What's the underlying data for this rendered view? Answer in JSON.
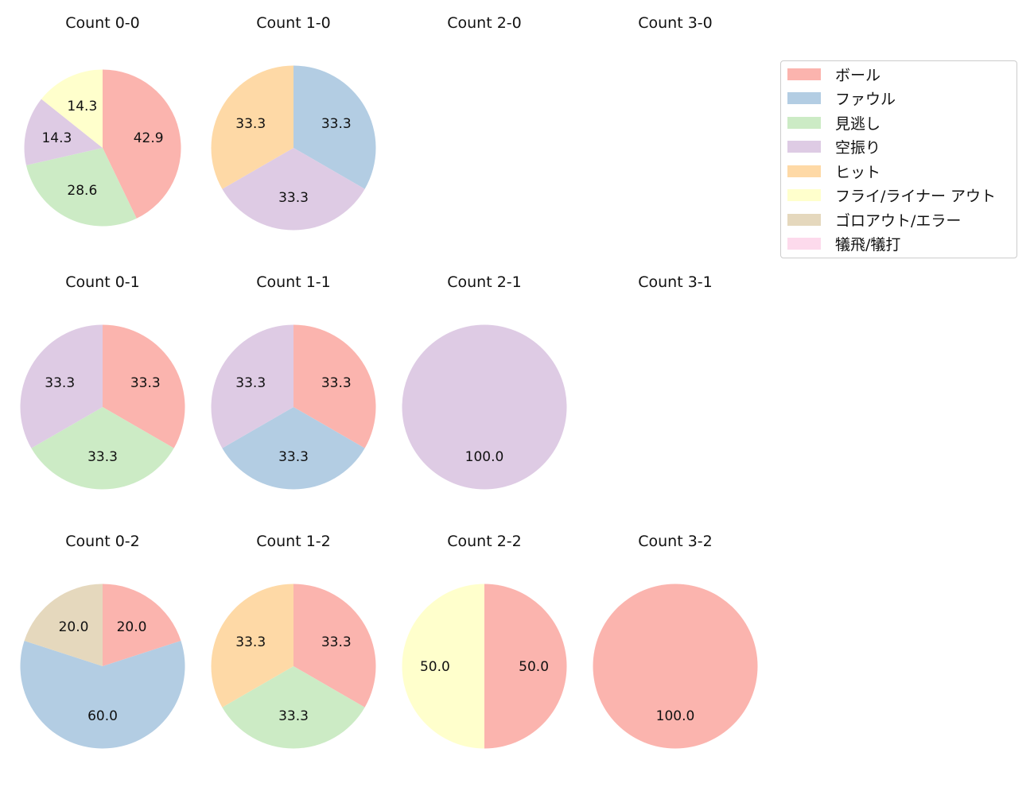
{
  "chart_data": {
    "type": "pie",
    "start_angle": 90,
    "direction": "clockwise",
    "categories": [
      "ボール",
      "ファウル",
      "見逃し",
      "空振り",
      "ヒット",
      "フライ/ライナー アウト",
      "ゴロアウト/エラー",
      "犠飛/犠打"
    ],
    "colors": [
      "#fbb4ae",
      "#b3cde3",
      "#ccebc5",
      "#decbe4",
      "#fed9a6",
      "#ffffcc",
      "#e5d8bd",
      "#fddaec"
    ],
    "legend_position": "top-right",
    "subplots": [
      {
        "title": "Count 0-0",
        "values": [
          42.9,
          0,
          28.6,
          14.3,
          0,
          14.3,
          0,
          0
        ]
      },
      {
        "title": "Count 1-0",
        "values": [
          0,
          33.3,
          0,
          33.3,
          33.3,
          0,
          0,
          0
        ]
      },
      {
        "title": "Count 2-0",
        "values": []
      },
      {
        "title": "Count 3-0",
        "values": []
      },
      {
        "title": "Count 0-1",
        "values": [
          33.3,
          0,
          33.3,
          33.3,
          0,
          0,
          0,
          0
        ]
      },
      {
        "title": "Count 1-1",
        "values": [
          33.3,
          33.3,
          0,
          33.3,
          0,
          0,
          0,
          0
        ]
      },
      {
        "title": "Count 2-1",
        "values": [
          0,
          0,
          0,
          100.0,
          0,
          0,
          0,
          0
        ]
      },
      {
        "title": "Count 3-1",
        "values": []
      },
      {
        "title": "Count 0-2",
        "values": [
          20.0,
          60.0,
          0,
          0,
          0,
          0,
          20.0,
          0
        ]
      },
      {
        "title": "Count 1-2",
        "values": [
          33.3,
          0,
          33.3,
          0,
          33.3,
          0,
          0,
          0
        ]
      },
      {
        "title": "Count 2-2",
        "values": [
          50.0,
          0,
          0,
          0,
          0,
          50.0,
          0,
          0
        ]
      },
      {
        "title": "Count 3-2",
        "values": [
          100.0,
          0,
          0,
          0,
          0,
          0,
          0,
          0
        ]
      }
    ]
  }
}
